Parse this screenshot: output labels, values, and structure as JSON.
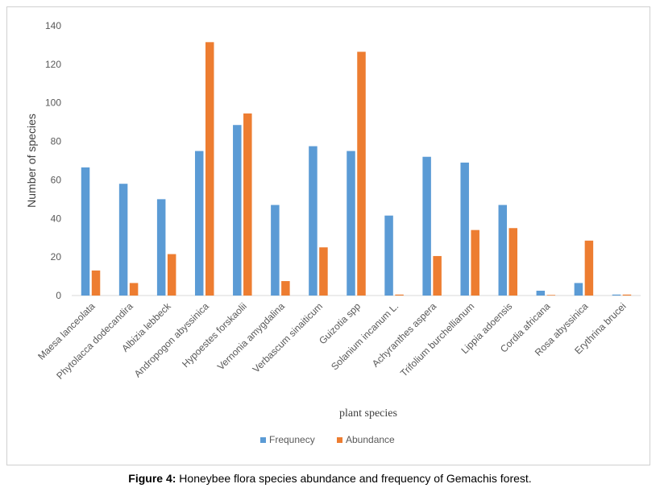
{
  "caption": {
    "label": "Figure 4:",
    "text": " Honeybee flora species abundance and frequency of Gemachis forest."
  },
  "chart_data": {
    "type": "bar",
    "xlabel": "plant species",
    "ylabel": "Number of species",
    "ylim": [
      0,
      140
    ],
    "yticks": [
      0,
      20,
      40,
      60,
      80,
      100,
      120,
      140
    ],
    "grid": false,
    "legend_position": "bottom",
    "categories": [
      "Maesa lanceolata",
      "Phytolacca dodecandira",
      "Albizia lebbeck",
      "Andropogon abyssinica",
      "Hypoestes forskaolii",
      "Vernonia amygdalina",
      "Verbascum sinaiticum",
      "Guizotia spp",
      "Solanium incanum L.",
      "Achyranthes aspera",
      "Trifolium burchellianum",
      "Lippia adoensis",
      "Cordia africana",
      "Rosa abyssinica",
      "Erythrina brucei"
    ],
    "series": [
      {
        "name": "Frequnecy",
        "color": "#5b9bd5",
        "values": [
          66.5,
          58,
          50,
          75,
          88.5,
          47,
          77.5,
          75,
          41.5,
          72,
          69,
          47,
          2.5,
          6.5,
          0.5
        ]
      },
      {
        "name": "Abundance",
        "color": "#ed7d31",
        "values": [
          13,
          6.5,
          21.5,
          131.5,
          94.5,
          7.5,
          25,
          126.5,
          0.5,
          20.5,
          34,
          35,
          0.3,
          28.5,
          0.5
        ]
      }
    ]
  }
}
